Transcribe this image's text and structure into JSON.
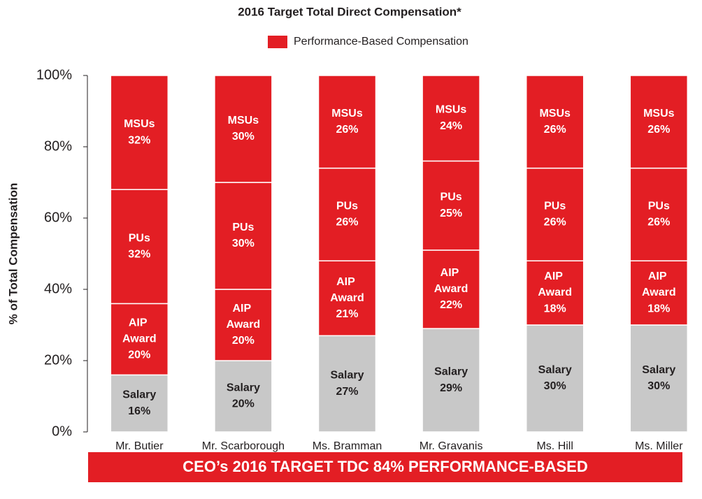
{
  "chart_data": {
    "type": "stacked_bar",
    "title": "2016 Target Total Direct Compensation*",
    "legend_label": "Performance-Based Compensation",
    "legend_color": "#e31e24",
    "y_label": "% of Total Compensation",
    "categories": [
      "Mr. Butier",
      "Mr. Scarborough",
      "Ms. Bramman",
      "Mr. Gravanis",
      "Ms. Hill",
      "Ms. Miller"
    ],
    "series": [
      {
        "name": "Salary",
        "color": "#c8c8c8",
        "values": [
          16,
          20,
          27,
          29,
          30,
          30
        ],
        "value_labels": [
          "16%",
          "20%",
          "27%",
          "29%",
          "30%",
          "30%"
        ]
      },
      {
        "name": "AIP Award",
        "color": "#e31e24",
        "values": [
          20,
          20,
          21,
          22,
          18,
          18
        ],
        "value_labels": [
          "20%",
          "20%",
          "21%",
          "22%",
          "18%",
          "18%"
        ]
      },
      {
        "name": "PUs",
        "color": "#e31e24",
        "values": [
          32,
          30,
          26,
          25,
          26,
          26
        ],
        "value_labels": [
          "32%",
          "30%",
          "26%",
          "25%",
          "26%",
          "26%"
        ]
      },
      {
        "name": "MSUs",
        "color": "#e31e24",
        "values": [
          32,
          30,
          26,
          24,
          26,
          26
        ],
        "value_labels": [
          "32%",
          "30%",
          "26%",
          "24%",
          "26%",
          "26%"
        ]
      }
    ],
    "ylim": [
      0,
      100
    ],
    "yticks": [
      {
        "value": 0,
        "label": "0%"
      },
      {
        "value": 20,
        "label": "20%"
      },
      {
        "value": 40,
        "label": "40%"
      },
      {
        "value": 60,
        "label": "60%"
      },
      {
        "value": 80,
        "label": "80%"
      },
      {
        "value": 100,
        "label": "100%"
      }
    ],
    "annotation": "CEO’s 2016 TARGET TDC 84% PERFORMANCE-BASED"
  }
}
